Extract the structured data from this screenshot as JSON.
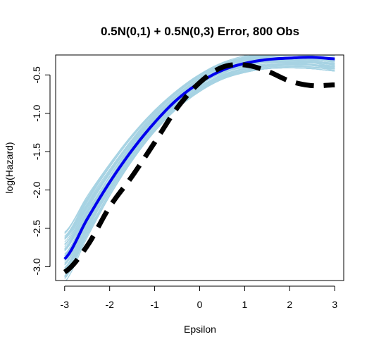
{
  "colors": {
    "bootstrap": "#a7d3e3",
    "estimate": "#0000ee",
    "truth": "#000000"
  },
  "chart_data": {
    "type": "line",
    "title": "0.5N(0,1) + 0.5N(0,3) Error, 800 Obs",
    "xlabel": "Epsilon",
    "ylabel": "log(Hazard)",
    "xlim": [
      -3.2,
      3.2
    ],
    "ylim": [
      -3.18,
      -0.24
    ],
    "x_ticks": [
      -3,
      -2,
      -1,
      0,
      1,
      2,
      3
    ],
    "y_ticks": [
      -3.0,
      -2.5,
      -2.0,
      -1.5,
      -1.0,
      -0.5
    ],
    "x_tick_labels": [
      "-3",
      "-2",
      "-1",
      "0",
      "1",
      "2",
      "3"
    ],
    "y_tick_labels": [
      "-3.0",
      "-2.5",
      "-2.0",
      "-1.5",
      "-1.0",
      "-0.5"
    ],
    "grid": false,
    "legend": "none",
    "series": [
      {
        "role": "estimate",
        "x": [
          -3,
          -2.5,
          -2,
          -1.5,
          -1,
          -0.5,
          0,
          0.5,
          1,
          1.5,
          2,
          2.5,
          3
        ],
        "y": [
          -2.9,
          -2.38,
          -1.9,
          -1.48,
          -1.12,
          -0.82,
          -0.6,
          -0.44,
          -0.35,
          -0.3,
          -0.28,
          -0.27,
          -0.29
        ]
      },
      {
        "role": "truth",
        "style": "dashed",
        "x": [
          -3,
          -2.5,
          -2,
          -1.5,
          -1,
          -0.5,
          0,
          0.5,
          1,
          1.5,
          2,
          2.5,
          3
        ],
        "y": [
          -3.07,
          -2.73,
          -2.22,
          -1.82,
          -1.38,
          -0.93,
          -0.6,
          -0.4,
          -0.37,
          -0.45,
          -0.58,
          -0.64,
          -0.63
        ]
      }
    ],
    "bootstrap_band": {
      "count": 80,
      "x": [
        -3,
        -2.5,
        -2,
        -1.5,
        -1,
        -0.5,
        0,
        0.5,
        1,
        1.5,
        2,
        2.5,
        3
      ],
      "lower": [
        -3.2,
        -2.62,
        -2.08,
        -1.62,
        -1.24,
        -0.94,
        -0.72,
        -0.56,
        -0.47,
        -0.42,
        -0.41,
        -0.42,
        -0.45
      ],
      "upper": [
        -2.55,
        -2.08,
        -1.66,
        -1.28,
        -0.96,
        -0.7,
        -0.49,
        -0.34,
        -0.25,
        -0.2,
        -0.18,
        -0.17,
        -0.18
      ]
    }
  }
}
